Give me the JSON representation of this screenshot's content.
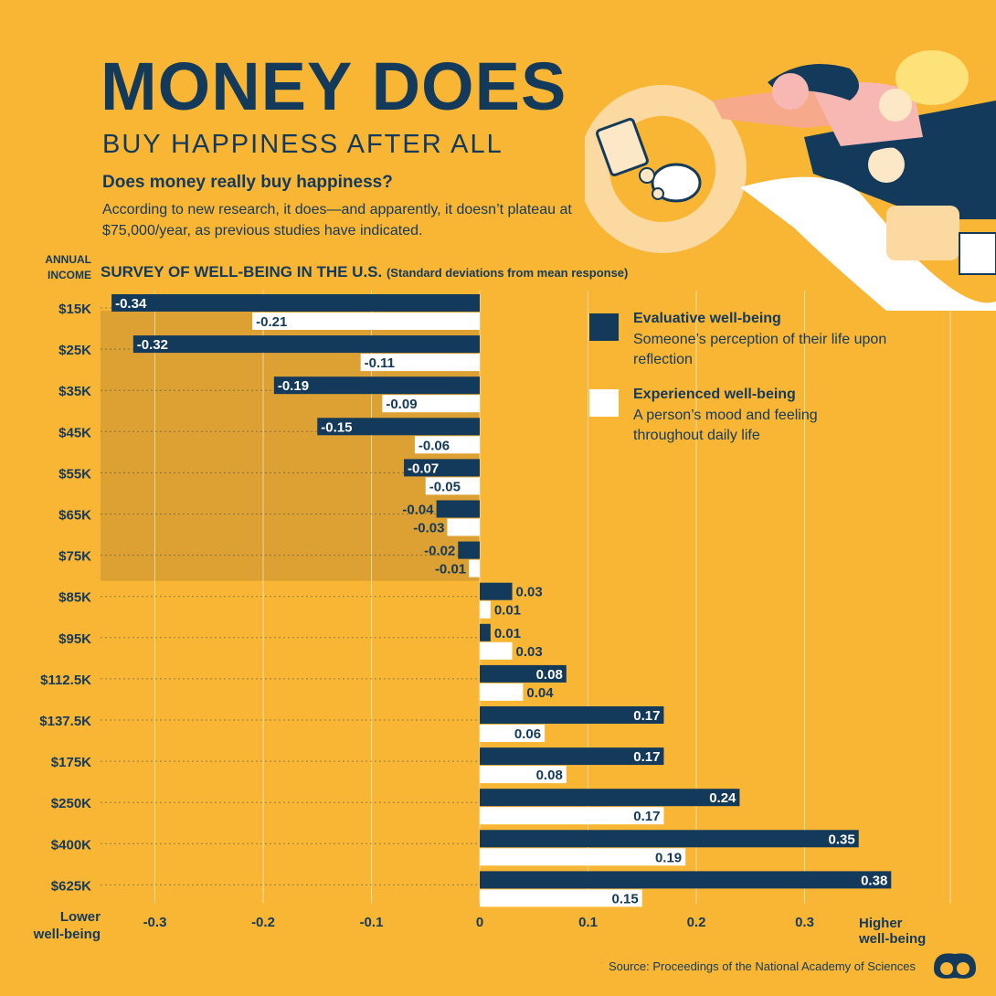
{
  "header": {
    "title": "MONEY DOES",
    "subtitle": "BUY HAPPINESS AFTER ALL",
    "question": "Does money really buy happiness?",
    "intro": "According to new research, it does—and apparently, it doesn’t plateau at $75,000/year, as previous studies have indicated."
  },
  "axis_label": {
    "line1": "ANNUAL",
    "line2": "INCOME"
  },
  "chart_data": {
    "type": "bar",
    "orientation": "horizontal",
    "title": "SURVEY OF WELL-BEING IN THE U.S.",
    "subtitle": "(Standard deviations from mean response)",
    "ylabel": "ANNUAL INCOME",
    "categories": [
      "$15K",
      "$25K",
      "$35K",
      "$45K",
      "$55K",
      "$65K",
      "$75K",
      "$85K",
      "$95K",
      "$112.5K",
      "$137.5K",
      "$175K",
      "$250K",
      "$400K",
      "$625K"
    ],
    "series": [
      {
        "name": "Evaluative well-being",
        "description": "Someone’s perception of their life upon reflection",
        "color": "#143A5B",
        "values": [
          -0.34,
          -0.32,
          -0.19,
          -0.15,
          -0.07,
          -0.04,
          -0.02,
          0.03,
          0.01,
          0.08,
          0.17,
          0.17,
          0.24,
          0.35,
          0.38
        ]
      },
      {
        "name": "Experienced well-being",
        "description": "A person’s mood and feeling throughout daily life",
        "color": "#FFFFFF",
        "values": [
          -0.21,
          -0.11,
          -0.09,
          -0.06,
          -0.05,
          -0.03,
          -0.01,
          0.01,
          0.03,
          0.04,
          0.06,
          0.08,
          0.17,
          0.19,
          0.15
        ]
      }
    ],
    "xlim": [
      -0.35,
      0.38
    ],
    "xticks": [
      "-0.3",
      "-0.2",
      "-0.1",
      "0",
      "0.1",
      "0.2",
      "0.3"
    ],
    "xtick_values": [
      -0.3,
      -0.2,
      -0.1,
      0,
      0.1,
      0.2,
      0.3
    ],
    "x_left_label": [
      "Lower",
      "well-being"
    ],
    "x_right_label": [
      "Higher",
      "well-being"
    ],
    "highlight_range": [
      "$15K",
      "$75K"
    ],
    "grid": true,
    "legend": "top-right",
    "shade_color": "#DDA032"
  },
  "footer": {
    "source": "Source: Proceedings of the National Academy of Sciences"
  }
}
